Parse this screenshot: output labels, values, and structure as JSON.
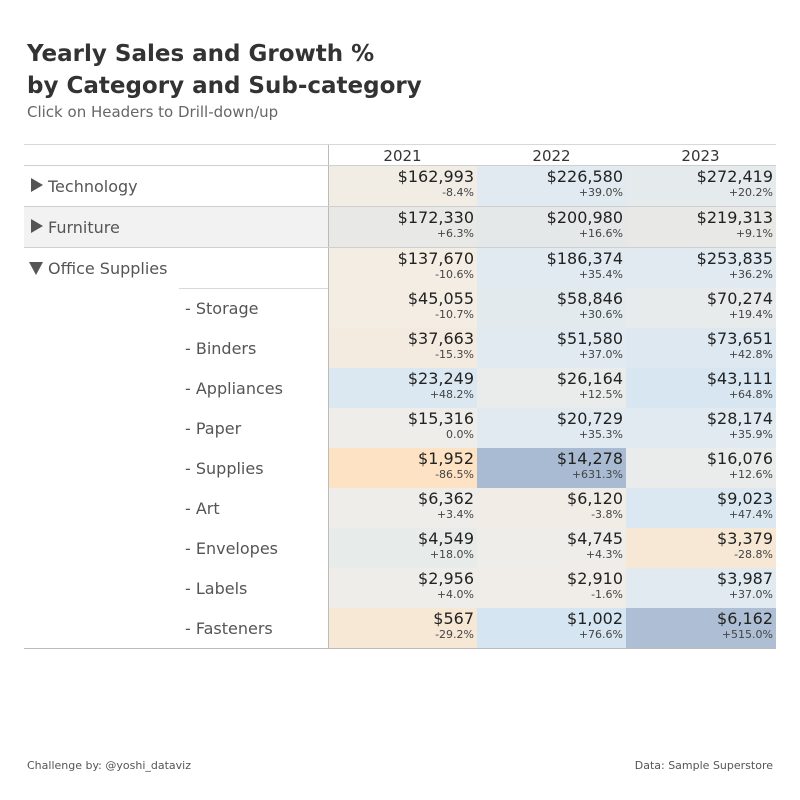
{
  "title_line1": "Yearly Sales and Growth %",
  "title_line2": "by Category and Sub-category",
  "subtitle": "Click on Headers to Drill-down/up",
  "footer_left": "Challenge by: @yoshi_dataviz",
  "footer_right": "Data: Sample Superstore",
  "years": [
    "2021",
    "2022",
    "2023"
  ],
  "rows": [
    {
      "label": "Technology",
      "level": "category",
      "expanded": false,
      "cells": [
        {
          "sales": "$162,993",
          "growth": "-8.4%",
          "color": "#f1ece4"
        },
        {
          "sales": "$226,580",
          "growth": "+39.0%",
          "color": "#e0eaf0"
        },
        {
          "sales": "$272,419",
          "growth": "+20.2%",
          "color": "#e5ebed"
        }
      ]
    },
    {
      "label": "Furniture",
      "level": "category",
      "expanded": false,
      "cells": [
        {
          "sales": "$172,330",
          "growth": "+6.3%",
          "color": "#e8e9e6"
        },
        {
          "sales": "$200,980",
          "growth": "+16.6%",
          "color": "#e4e8e9"
        },
        {
          "sales": "$219,313",
          "growth": "+9.1%",
          "color": "#e8e9e6"
        }
      ]
    },
    {
      "label": "Office Supplies",
      "level": "category",
      "expanded": true,
      "cells": [
        {
          "sales": "$137,670",
          "growth": "-10.6%",
          "color": "#f3ede4"
        },
        {
          "sales": "$186,374",
          "growth": "+35.4%",
          "color": "#e1eaf0"
        },
        {
          "sales": "$253,835",
          "growth": "+36.2%",
          "color": "#e0eaf0"
        }
      ]
    },
    {
      "label": "- Storage",
      "level": "sub",
      "cells": [
        {
          "sales": "$45,055",
          "growth": "-10.7%",
          "color": "#f3ede4"
        },
        {
          "sales": "$58,846",
          "growth": "+30.6%",
          "color": "#e3eaee"
        },
        {
          "sales": "$70,274",
          "growth": "+19.4%",
          "color": "#e7ebec"
        }
      ]
    },
    {
      "label": "- Binders",
      "level": "sub",
      "cells": [
        {
          "sales": "$37,663",
          "growth": "-15.3%",
          "color": "#f4ebe0"
        },
        {
          "sales": "$51,580",
          "growth": "+37.0%",
          "color": "#e0eaf0"
        },
        {
          "sales": "$73,651",
          "growth": "+42.8%",
          "color": "#dde8f1"
        }
      ]
    },
    {
      "label": "- Appliances",
      "level": "sub",
      "cells": [
        {
          "sales": "$23,249",
          "growth": "+48.2%",
          "color": "#dbe8f1"
        },
        {
          "sales": "$26,164",
          "growth": "+12.5%",
          "color": "#e9eceb"
        },
        {
          "sales": "$43,111",
          "growth": "+64.8%",
          "color": "#d8e6f1"
        }
      ]
    },
    {
      "label": "- Paper",
      "level": "sub",
      "cells": [
        {
          "sales": "$15,316",
          "growth": "0.0%",
          "color": "#efede9"
        },
        {
          "sales": "$20,729",
          "growth": "+35.3%",
          "color": "#e1eaf0"
        },
        {
          "sales": "$28,174",
          "growth": "+35.9%",
          "color": "#e0eaf0"
        }
      ]
    },
    {
      "label": "- Supplies",
      "level": "sub",
      "cells": [
        {
          "sales": "$1,952",
          "growth": "-86.5%",
          "color": "#fde3c3"
        },
        {
          "sales": "$14,278",
          "growth": "+631.3%",
          "color": "#a9bbd3"
        },
        {
          "sales": "$16,076",
          "growth": "+12.6%",
          "color": "#e9eceb"
        }
      ]
    },
    {
      "label": "- Art",
      "level": "sub",
      "cells": [
        {
          "sales": "$6,362",
          "growth": "+3.4%",
          "color": "#eeedea"
        },
        {
          "sales": "$6,120",
          "growth": "-3.8%",
          "color": "#f1ede6"
        },
        {
          "sales": "$9,023",
          "growth": "+47.4%",
          "color": "#dbe8f1"
        }
      ]
    },
    {
      "label": "- Envelopes",
      "level": "sub",
      "cells": [
        {
          "sales": "$4,549",
          "growth": "+18.0%",
          "color": "#e7ebea"
        },
        {
          "sales": "$4,745",
          "growth": "+4.3%",
          "color": "#eeede9"
        },
        {
          "sales": "$3,379",
          "growth": "-28.8%",
          "color": "#f7e8d6"
        }
      ]
    },
    {
      "label": "- Labels",
      "level": "sub",
      "cells": [
        {
          "sales": "$2,956",
          "growth": "+4.0%",
          "color": "#eeedea"
        },
        {
          "sales": "$2,910",
          "growth": "-1.6%",
          "color": "#f0ede8"
        },
        {
          "sales": "$3,987",
          "growth": "+37.0%",
          "color": "#e0eaf0"
        }
      ]
    },
    {
      "label": "- Fasteners",
      "level": "sub",
      "cells": [
        {
          "sales": "$567",
          "growth": "-29.2%",
          "color": "#f7e8d5"
        },
        {
          "sales": "$1,002",
          "growth": "+76.6%",
          "color": "#d5e5f1"
        },
        {
          "sales": "$6,162",
          "growth": "+515.0%",
          "color": "#aebfd5"
        }
      ]
    }
  ],
  "chart_data": {
    "type": "table",
    "columns": [
      "2021",
      "2022",
      "2023"
    ],
    "row_labels": [
      "Technology",
      "Furniture",
      "Office Supplies",
      "- Storage",
      "- Binders",
      "- Appliances",
      "- Paper",
      "- Supplies",
      "- Art",
      "- Envelopes",
      "- Labels",
      "- Fasteners"
    ],
    "sales": [
      [
        162993,
        226580,
        272419
      ],
      [
        172330,
        200980,
        219313
      ],
      [
        137670,
        186374,
        253835
      ],
      [
        45055,
        58846,
        70274
      ],
      [
        37663,
        51580,
        73651
      ],
      [
        23249,
        26164,
        43111
      ],
      [
        15316,
        20729,
        28174
      ],
      [
        1952,
        14278,
        16076
      ],
      [
        6362,
        6120,
        9023
      ],
      [
        4549,
        4745,
        3379
      ],
      [
        2956,
        2910,
        3987
      ],
      [
        567,
        1002,
        6162
      ]
    ],
    "growth_pct": [
      [
        -8.4,
        39.0,
        20.2
      ],
      [
        6.3,
        16.6,
        9.1
      ],
      [
        -10.6,
        35.4,
        36.2
      ],
      [
        -10.7,
        30.6,
        19.4
      ],
      [
        -15.3,
        37.0,
        42.8
      ],
      [
        48.2,
        12.5,
        64.8
      ],
      [
        0.0,
        35.3,
        35.9
      ],
      [
        -86.5,
        631.3,
        12.6
      ],
      [
        3.4,
        -3.8,
        47.4
      ],
      [
        18.0,
        4.3,
        -28.8
      ],
      [
        4.0,
        -1.6,
        37.0
      ],
      [
        -29.2,
        76.6,
        515.0
      ]
    ]
  }
}
